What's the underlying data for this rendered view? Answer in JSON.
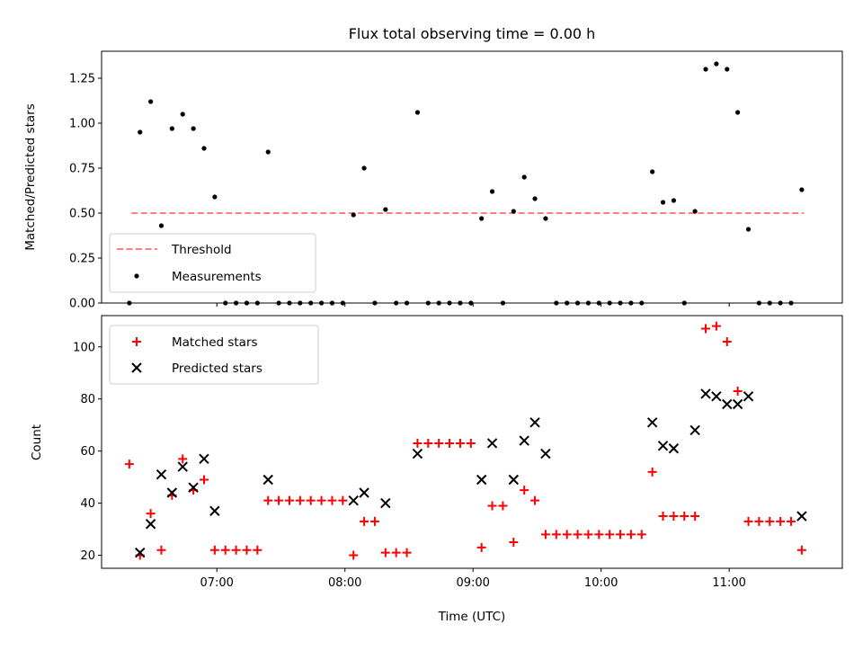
{
  "chart_data": {
    "title": "Flux total observing time = 0.00 h",
    "panels": [
      {
        "type": "scatter",
        "ylabel": "Matched/Predicted stars",
        "ylim": [
          0,
          1.4
        ],
        "yticks": [
          0.0,
          0.25,
          0.5,
          0.75,
          1.0,
          1.25
        ],
        "ytick_labels": [
          "0.00",
          "0.25",
          "0.50",
          "0.75",
          "1.00",
          "1.25"
        ],
        "threshold": {
          "name": "Threshold",
          "value": 0.5,
          "x_range": [
            "06:20",
            "11:35"
          ],
          "color": "#ff7f7f"
        },
        "series": [
          {
            "name": "Measurements",
            "marker": "dot",
            "color": "#000000",
            "points": [
              [
                "06:19",
                0.0
              ],
              [
                "06:24",
                0.95
              ],
              [
                "06:29",
                1.12
              ],
              [
                "06:34",
                0.43
              ],
              [
                "06:39",
                0.97
              ],
              [
                "06:44",
                1.05
              ],
              [
                "06:49",
                0.97
              ],
              [
                "06:54",
                0.86
              ],
              [
                "06:59",
                0.59
              ],
              [
                "07:04",
                0.0
              ],
              [
                "07:09",
                0.0
              ],
              [
                "07:14",
                0.0
              ],
              [
                "07:19",
                0.0
              ],
              [
                "07:24",
                0.84
              ],
              [
                "07:29",
                0.0
              ],
              [
                "07:34",
                0.0
              ],
              [
                "07:39",
                0.0
              ],
              [
                "07:44",
                0.0
              ],
              [
                "07:49",
                0.0
              ],
              [
                "07:54",
                0.0
              ],
              [
                "07:59",
                0.0
              ],
              [
                "08:04",
                0.49
              ],
              [
                "08:09",
                0.75
              ],
              [
                "08:14",
                0.0
              ],
              [
                "08:19",
                0.52
              ],
              [
                "08:24",
                0.0
              ],
              [
                "08:29",
                0.0
              ],
              [
                "08:34",
                1.06
              ],
              [
                "08:39",
                0.0
              ],
              [
                "08:44",
                0.0
              ],
              [
                "08:49",
                0.0
              ],
              [
                "08:54",
                0.0
              ],
              [
                "08:59",
                0.0
              ],
              [
                "09:04",
                0.47
              ],
              [
                "09:09",
                0.62
              ],
              [
                "09:14",
                0.0
              ],
              [
                "09:19",
                0.51
              ],
              [
                "09:24",
                0.7
              ],
              [
                "09:29",
                0.58
              ],
              [
                "09:34",
                0.47
              ],
              [
                "09:39",
                0.0
              ],
              [
                "09:44",
                0.0
              ],
              [
                "09:49",
                0.0
              ],
              [
                "09:54",
                0.0
              ],
              [
                "09:59",
                0.0
              ],
              [
                "10:04",
                0.0
              ],
              [
                "10:09",
                0.0
              ],
              [
                "10:14",
                0.0
              ],
              [
                "10:19",
                0.0
              ],
              [
                "10:24",
                0.73
              ],
              [
                "10:29",
                0.56
              ],
              [
                "10:34",
                0.57
              ],
              [
                "10:39",
                0.0
              ],
              [
                "10:44",
                0.51
              ],
              [
                "10:49",
                1.3
              ],
              [
                "10:54",
                1.33
              ],
              [
                "10:59",
                1.3
              ],
              [
                "11:04",
                1.06
              ],
              [
                "11:09",
                0.41
              ],
              [
                "11:14",
                0.0
              ],
              [
                "11:19",
                0.0
              ],
              [
                "11:24",
                0.0
              ],
              [
                "11:29",
                0.0
              ],
              [
                "11:34",
                0.63
              ]
            ]
          }
        ],
        "legend": "lower-left"
      },
      {
        "type": "scatter",
        "ylabel": "Count",
        "xlabel": "Time (UTC)",
        "ylim": [
          15,
          112
        ],
        "yticks": [
          20,
          40,
          60,
          80,
          100
        ],
        "series": [
          {
            "name": "Matched stars",
            "marker": "plus",
            "color": "#ff0000",
            "points": [
              [
                "06:19",
                55
              ],
              [
                "06:24",
                20
              ],
              [
                "06:29",
                36
              ],
              [
                "06:34",
                22
              ],
              [
                "06:39",
                43
              ],
              [
                "06:44",
                57
              ],
              [
                "06:49",
                45
              ],
              [
                "06:54",
                49
              ],
              [
                "06:59",
                22
              ],
              [
                "07:04",
                22
              ],
              [
                "07:09",
                22
              ],
              [
                "07:14",
                22
              ],
              [
                "07:19",
                22
              ],
              [
                "07:24",
                41
              ],
              [
                "07:29",
                41
              ],
              [
                "07:34",
                41
              ],
              [
                "07:39",
                41
              ],
              [
                "07:44",
                41
              ],
              [
                "07:49",
                41
              ],
              [
                "07:54",
                41
              ],
              [
                "07:59",
                41
              ],
              [
                "08:04",
                20
              ],
              [
                "08:09",
                33
              ],
              [
                "08:14",
                33
              ],
              [
                "08:19",
                21
              ],
              [
                "08:24",
                21
              ],
              [
                "08:29",
                21
              ],
              [
                "08:34",
                63
              ],
              [
                "08:39",
                63
              ],
              [
                "08:44",
                63
              ],
              [
                "08:49",
                63
              ],
              [
                "08:54",
                63
              ],
              [
                "08:59",
                63
              ],
              [
                "09:04",
                23
              ],
              [
                "09:09",
                39
              ],
              [
                "09:14",
                39
              ],
              [
                "09:19",
                25
              ],
              [
                "09:24",
                45
              ],
              [
                "09:29",
                41
              ],
              [
                "09:34",
                28
              ],
              [
                "09:39",
                28
              ],
              [
                "09:44",
                28
              ],
              [
                "09:49",
                28
              ],
              [
                "09:54",
                28
              ],
              [
                "09:59",
                28
              ],
              [
                "10:04",
                28
              ],
              [
                "10:09",
                28
              ],
              [
                "10:14",
                28
              ],
              [
                "10:19",
                28
              ],
              [
                "10:24",
                52
              ],
              [
                "10:29",
                35
              ],
              [
                "10:34",
                35
              ],
              [
                "10:39",
                35
              ],
              [
                "10:44",
                35
              ],
              [
                "10:49",
                107
              ],
              [
                "10:54",
                108
              ],
              [
                "10:59",
                102
              ],
              [
                "11:04",
                83
              ],
              [
                "11:09",
                33
              ],
              [
                "11:14",
                33
              ],
              [
                "11:19",
                33
              ],
              [
                "11:24",
                33
              ],
              [
                "11:29",
                33
              ],
              [
                "11:34",
                22
              ]
            ]
          },
          {
            "name": "Predicted stars",
            "marker": "x",
            "color": "#000000",
            "points": [
              [
                "06:24",
                21
              ],
              [
                "06:29",
                32
              ],
              [
                "06:34",
                51
              ],
              [
                "06:39",
                44
              ],
              [
                "06:44",
                54
              ],
              [
                "06:49",
                46
              ],
              [
                "06:54",
                57
              ],
              [
                "06:59",
                37
              ],
              [
                "07:24",
                49
              ],
              [
                "08:04",
                41
              ],
              [
                "08:09",
                44
              ],
              [
                "08:19",
                40
              ],
              [
                "08:34",
                59
              ],
              [
                "09:04",
                49
              ],
              [
                "09:09",
                63
              ],
              [
                "09:19",
                49
              ],
              [
                "09:24",
                64
              ],
              [
                "09:29",
                71
              ],
              [
                "09:34",
                59
              ],
              [
                "10:24",
                71
              ],
              [
                "10:29",
                62
              ],
              [
                "10:34",
                61
              ],
              [
                "10:44",
                68
              ],
              [
                "10:49",
                82
              ],
              [
                "10:54",
                81
              ],
              [
                "10:59",
                78
              ],
              [
                "11:04",
                78
              ],
              [
                "11:09",
                81
              ],
              [
                "11:34",
                35
              ]
            ]
          }
        ],
        "legend": "upper-left"
      }
    ],
    "xlim": [
      "06:06",
      "11:53"
    ],
    "xticks": [
      "07:00",
      "08:00",
      "09:00",
      "10:00",
      "11:00"
    ]
  }
}
